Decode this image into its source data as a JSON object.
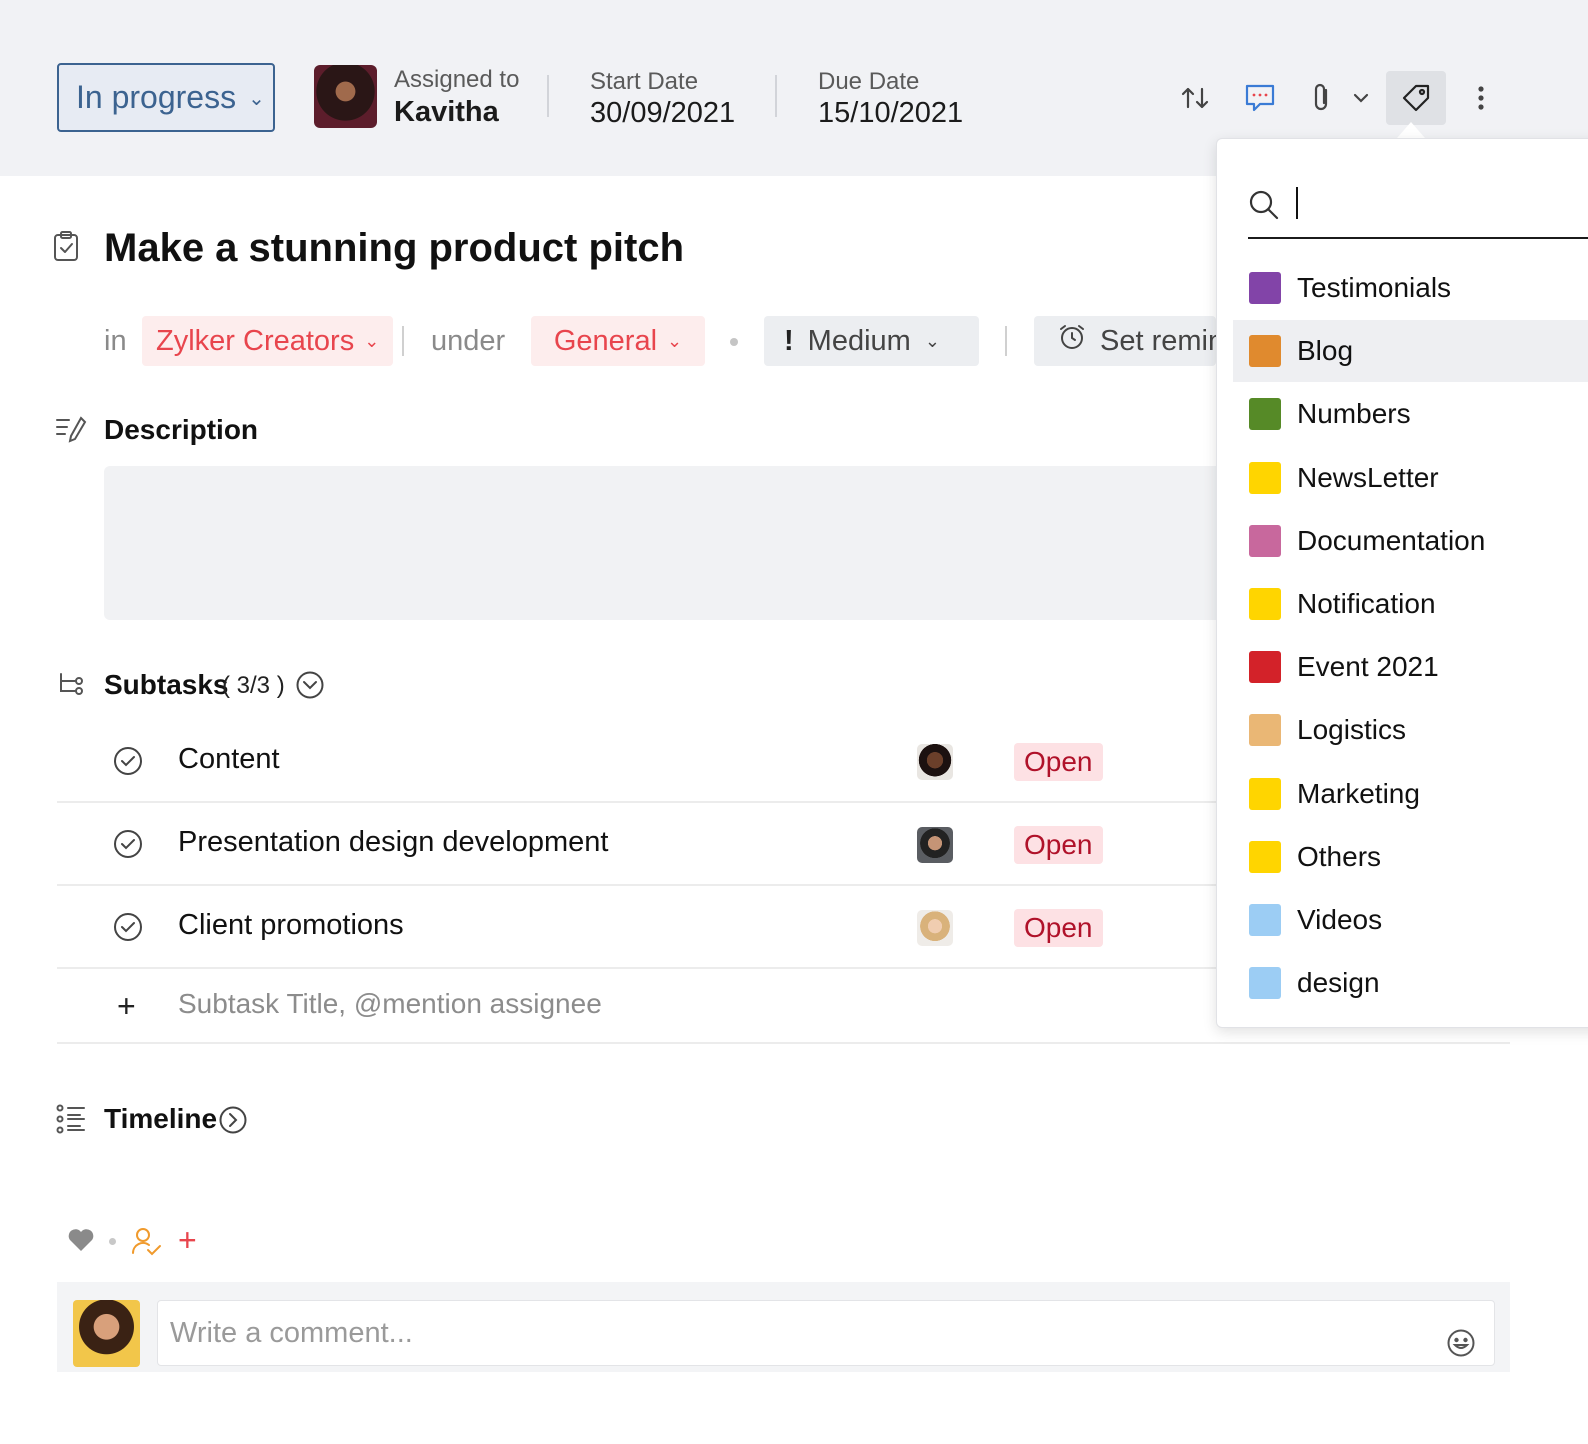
{
  "header": {
    "status_label": "In progress",
    "assigned_label": "Assigned to",
    "assigned_name": "Kavitha",
    "start_label": "Start Date",
    "start_value": "30/09/2021",
    "due_label": "Due Date",
    "due_value": "15/10/2021"
  },
  "task": {
    "title": "Make a stunning product pitch",
    "in_label": "in",
    "project": "Zylker Creators",
    "under_label": "under",
    "tasklist": "General",
    "priority": "Medium",
    "reminder": "Set remind"
  },
  "description": {
    "heading": "Description"
  },
  "subtasks": {
    "heading": "Subtasks",
    "count": "( 3/3 )",
    "items": [
      {
        "title": "Content",
        "status": "Open"
      },
      {
        "title": "Presentation design development",
        "status": "Open"
      },
      {
        "title": "Client promotions",
        "status": "Open"
      }
    ],
    "add_placeholder": "Subtask Title, @mention assignee"
  },
  "timeline": {
    "heading": "Timeline"
  },
  "comment": {
    "placeholder": "Write a comment..."
  },
  "tag_menu": {
    "tags": [
      {
        "label": "Testimonials",
        "color": "#8244a8"
      },
      {
        "label": "Blog",
        "color": "#e08a2e"
      },
      {
        "label": "Numbers",
        "color": "#568a27"
      },
      {
        "label": "NewsLetter",
        "color": "#ffd500"
      },
      {
        "label": "Documentation",
        "color": "#c8689d"
      },
      {
        "label": "Notification",
        "color": "#ffd500"
      },
      {
        "label": "Event 2021",
        "color": "#d32229"
      },
      {
        "label": "Logistics",
        "color": "#eab775"
      },
      {
        "label": "Marketing",
        "color": "#ffd500"
      },
      {
        "label": "Others",
        "color": "#ffd500"
      },
      {
        "label": "Videos",
        "color": "#9ccdf4"
      },
      {
        "label": "design",
        "color": "#9ccdf4"
      }
    ],
    "hovered_tag": "Blog"
  },
  "icons": {
    "header": [
      "recurrence-icon",
      "comment-icon",
      "attachment-icon",
      "chevron-down-icon",
      "tag-icon",
      "more-icon"
    ],
    "sections": [
      "task-icon",
      "description-icon",
      "subtasks-icon",
      "timeline-icon"
    ],
    "reactions": [
      "like-icon",
      "follower-icon",
      "add-icon"
    ]
  }
}
